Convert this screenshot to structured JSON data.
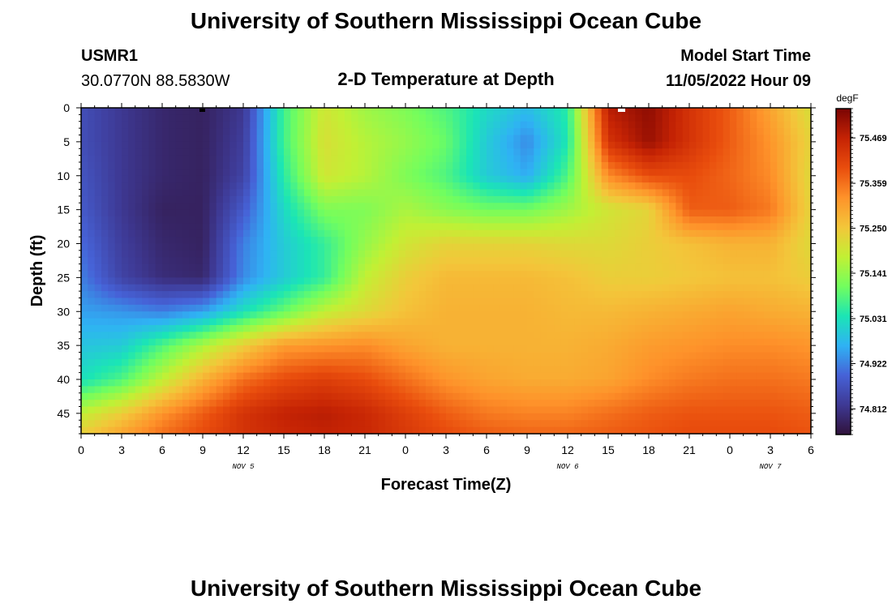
{
  "page": {
    "title_top": "University of Southern Mississippi Ocean Cube",
    "title_bottom": "University of Southern Mississippi Ocean Cube",
    "station_id": "USMR1",
    "station_coords": "30.0770N  88.5830W",
    "plot_title": "2-D Temperature at Depth",
    "model_start_label": "Model Start Time",
    "model_start_value": "11/05/2022 Hour 09"
  },
  "chart_data": {
    "type": "heatmap",
    "xlabel": "Forecast Time(Z)",
    "ylabel": "Depth (ft)",
    "x_range_hours": [
      0,
      54
    ],
    "y_range_ft": [
      0,
      48
    ],
    "y_inverted": true,
    "x_tick_labels": [
      "0",
      "3",
      "6",
      "9",
      "12",
      "15",
      "18",
      "21",
      "0",
      "3",
      "6",
      "9",
      "12",
      "15",
      "18",
      "21",
      "0",
      "3",
      "6"
    ],
    "y_ticks": [
      0,
      5,
      10,
      15,
      20,
      25,
      30,
      35,
      40,
      45
    ],
    "date_labels": [
      {
        "text": "NOV 5",
        "hour": 12
      },
      {
        "text": "NOV 6",
        "hour": 36
      },
      {
        "text": "NOV 7",
        "hour": 51
      }
    ],
    "colorbar": {
      "unit": "degF",
      "range": [
        74.75,
        75.54
      ],
      "labels": [
        "75.469",
        "75.359",
        "75.250",
        "75.141",
        "75.031",
        "74.922",
        "74.812"
      ],
      "colors": [
        "#30123b",
        "#3e3994",
        "#4662d7",
        "#2fb2f4",
        "#1be5b5",
        "#72fe5e",
        "#c2f034",
        "#f3c63a",
        "#fe922a",
        "#e94d0d",
        "#c52304",
        "#7a0403"
      ]
    },
    "field_anchor_grid": {
      "x_hours": [
        0,
        3,
        6,
        9,
        12,
        15,
        18,
        21,
        24,
        27,
        30,
        33,
        36,
        39,
        42,
        45,
        48,
        51,
        54
      ],
      "depths_ft": [
        0,
        5,
        10,
        15,
        20,
        25,
        30,
        35,
        40,
        45,
        48
      ],
      "values_degF": [
        [
          74.86,
          74.82,
          74.79,
          74.78,
          74.82,
          75.07,
          75.2,
          75.15,
          75.12,
          75.08,
          75.02,
          74.98,
          75.05,
          75.48,
          75.52,
          75.44,
          75.38,
          75.3,
          75.21
        ],
        [
          74.86,
          74.82,
          74.79,
          74.78,
          74.83,
          75.07,
          75.21,
          75.17,
          75.14,
          75.1,
          75.0,
          74.93,
          75.04,
          75.44,
          75.51,
          75.44,
          75.38,
          75.32,
          75.23
        ],
        [
          74.87,
          74.82,
          74.79,
          74.78,
          74.84,
          75.05,
          75.2,
          75.17,
          75.12,
          75.08,
          75.0,
          74.96,
          75.08,
          75.33,
          75.4,
          75.4,
          75.37,
          75.33,
          75.22
        ],
        [
          74.88,
          74.82,
          74.78,
          74.78,
          74.88,
          75.02,
          75.12,
          75.12,
          75.16,
          75.13,
          75.11,
          75.11,
          75.15,
          75.2,
          75.23,
          75.38,
          75.38,
          75.35,
          75.23
        ],
        [
          74.9,
          74.83,
          74.79,
          74.78,
          74.92,
          75.0,
          75.06,
          75.14,
          75.2,
          75.23,
          75.23,
          75.23,
          75.22,
          75.22,
          75.24,
          75.26,
          75.28,
          75.28,
          75.22
        ],
        [
          74.92,
          74.84,
          74.8,
          74.79,
          74.93,
          75.0,
          75.06,
          75.18,
          75.24,
          75.27,
          75.27,
          75.27,
          75.26,
          75.24,
          75.24,
          75.25,
          75.26,
          75.26,
          75.24
        ],
        [
          74.95,
          74.94,
          74.92,
          74.95,
          75.03,
          75.1,
          75.18,
          75.22,
          75.26,
          75.28,
          75.28,
          75.28,
          75.27,
          75.27,
          75.28,
          75.29,
          75.3,
          75.29,
          75.28
        ],
        [
          74.99,
          75.0,
          75.08,
          75.16,
          75.24,
          75.31,
          75.32,
          75.33,
          75.3,
          75.28,
          75.28,
          75.28,
          75.28,
          75.29,
          75.31,
          75.32,
          75.33,
          75.33,
          75.32
        ],
        [
          75.03,
          75.08,
          75.18,
          75.28,
          75.36,
          75.4,
          75.42,
          75.4,
          75.36,
          75.32,
          75.3,
          75.29,
          75.29,
          75.3,
          75.33,
          75.35,
          75.36,
          75.36,
          75.35
        ],
        [
          75.18,
          75.24,
          75.32,
          75.38,
          75.44,
          75.47,
          75.48,
          75.46,
          75.42,
          75.38,
          75.35,
          75.34,
          75.34,
          75.36,
          75.38,
          75.39,
          75.39,
          75.39,
          75.38
        ],
        [
          75.24,
          75.3,
          75.36,
          75.4,
          75.44,
          75.46,
          75.47,
          75.46,
          75.43,
          75.4,
          75.38,
          75.37,
          75.37,
          75.38,
          75.39,
          75.4,
          75.4,
          75.4,
          75.39
        ]
      ]
    }
  }
}
